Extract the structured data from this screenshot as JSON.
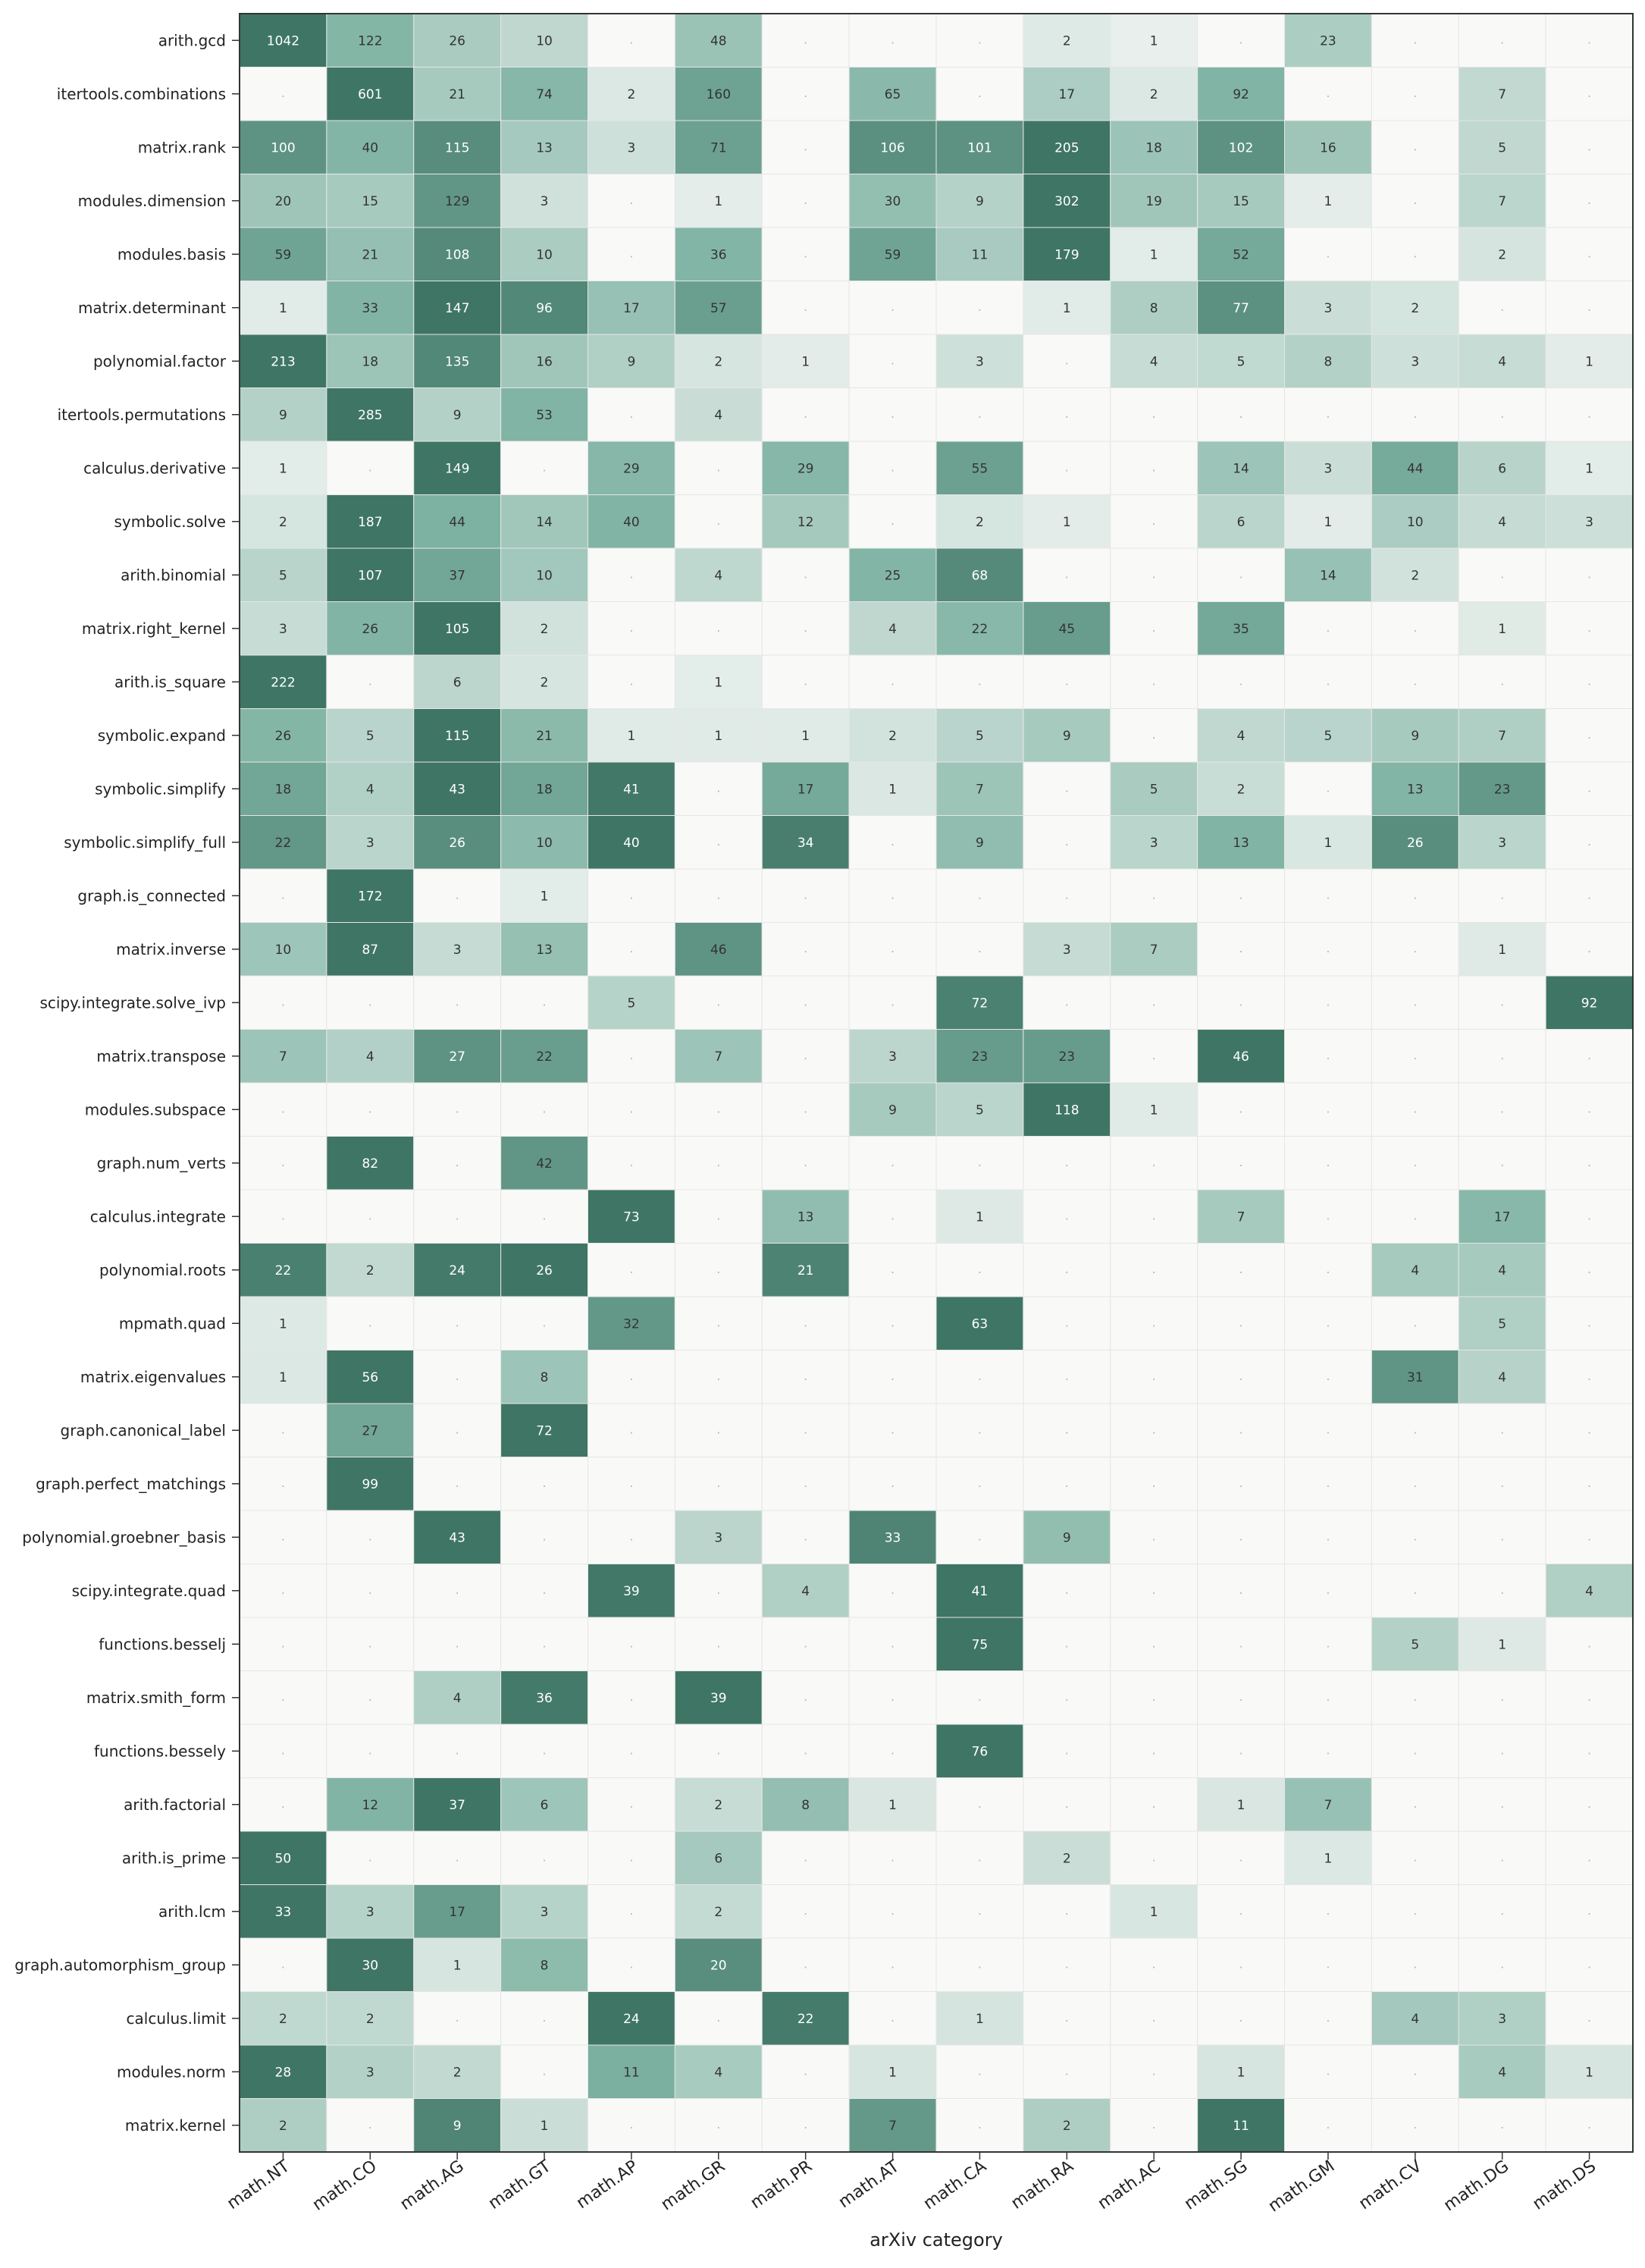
{
  "chart_data": {
    "type": "heatmap",
    "title": "",
    "xlabel": "arXiv category",
    "ylabel": "",
    "x_categories": [
      "math.NT",
      "math.CO",
      "math.AG",
      "math.GT",
      "math.AP",
      "math.GR",
      "math.PR",
      "math.AT",
      "math.CA",
      "math.RA",
      "math.AC",
      "math.SG",
      "math.GM",
      "math.CV",
      "math.DG",
      "math.DS"
    ],
    "y_categories": [
      "arith.gcd",
      "itertools.combinations",
      "matrix.rank",
      "modules.dimension",
      "modules.basis",
      "matrix.determinant",
      "polynomial.factor",
      "itertools.permutations",
      "calculus.derivative",
      "symbolic.solve",
      "arith.binomial",
      "matrix.right_kernel",
      "arith.is_square",
      "symbolic.expand",
      "symbolic.simplify",
      "symbolic.simplify_full",
      "graph.is_connected",
      "matrix.inverse",
      "scipy.integrate.solve_ivp",
      "matrix.transpose",
      "modules.subspace",
      "graph.num_verts",
      "calculus.integrate",
      "polynomial.roots",
      "mpmath.quad",
      "matrix.eigenvalues",
      "graph.canonical_label",
      "graph.perfect_matchings",
      "polynomial.groebner_basis",
      "scipy.integrate.quad",
      "functions.besselj",
      "matrix.smith_form",
      "functions.bessely",
      "arith.factorial",
      "arith.is_prime",
      "arith.lcm",
      "graph.automorphism_group",
      "calculus.limit",
      "modules.norm",
      "matrix.kernel"
    ],
    "values": [
      [
        1042,
        122,
        26,
        10,
        null,
        48,
        null,
        null,
        null,
        2,
        1,
        null,
        23,
        null,
        null,
        null
      ],
      [
        null,
        601,
        21,
        74,
        2,
        160,
        null,
        65,
        null,
        17,
        2,
        92,
        null,
        null,
        7,
        null
      ],
      [
        100,
        40,
        115,
        13,
        3,
        71,
        null,
        106,
        101,
        205,
        18,
        102,
        16,
        null,
        5,
        null
      ],
      [
        20,
        15,
        129,
        3,
        null,
        1,
        null,
        30,
        9,
        302,
        19,
        15,
        1,
        null,
        7,
        null
      ],
      [
        59,
        21,
        108,
        10,
        null,
        36,
        null,
        59,
        11,
        179,
        1,
        52,
        null,
        null,
        2,
        null
      ],
      [
        1,
        33,
        147,
        96,
        17,
        57,
        null,
        null,
        null,
        1,
        8,
        77,
        3,
        2,
        null,
        null
      ],
      [
        213,
        18,
        135,
        16,
        9,
        2,
        1,
        null,
        3,
        null,
        4,
        5,
        8,
        3,
        4,
        1
      ],
      [
        9,
        285,
        9,
        53,
        null,
        4,
        null,
        null,
        null,
        null,
        null,
        null,
        null,
        null,
        null,
        null
      ],
      [
        1,
        null,
        149,
        null,
        29,
        null,
        29,
        null,
        55,
        null,
        null,
        14,
        3,
        44,
        6,
        1
      ],
      [
        2,
        187,
        44,
        14,
        40,
        null,
        12,
        null,
        2,
        1,
        null,
        6,
        1,
        10,
        4,
        3
      ],
      [
        5,
        107,
        37,
        10,
        null,
        4,
        null,
        25,
        68,
        null,
        null,
        null,
        14,
        2,
        null,
        null
      ],
      [
        3,
        26,
        105,
        2,
        null,
        null,
        null,
        4,
        22,
        45,
        null,
        35,
        null,
        null,
        1,
        null
      ],
      [
        222,
        null,
        6,
        2,
        null,
        1,
        null,
        null,
        null,
        null,
        null,
        null,
        null,
        null,
        null,
        null
      ],
      [
        26,
        5,
        115,
        21,
        1,
        1,
        1,
        2,
        5,
        9,
        null,
        4,
        5,
        9,
        7,
        null
      ],
      [
        18,
        4,
        43,
        18,
        41,
        null,
        17,
        1,
        7,
        null,
        5,
        2,
        null,
        13,
        23,
        null
      ],
      [
        22,
        3,
        26,
        10,
        40,
        null,
        34,
        null,
        9,
        null,
        3,
        13,
        1,
        26,
        3,
        null
      ],
      [
        null,
        172,
        null,
        1,
        null,
        null,
        null,
        null,
        null,
        null,
        null,
        null,
        null,
        null,
        null,
        null
      ],
      [
        10,
        87,
        3,
        13,
        null,
        46,
        null,
        null,
        null,
        3,
        7,
        null,
        null,
        null,
        1,
        null
      ],
      [
        null,
        null,
        null,
        null,
        5,
        null,
        null,
        null,
        72,
        null,
        null,
        null,
        null,
        null,
        null,
        92
      ],
      [
        7,
        4,
        27,
        22,
        null,
        7,
        null,
        3,
        23,
        23,
        null,
        46,
        null,
        null,
        null,
        null
      ],
      [
        null,
        null,
        null,
        null,
        null,
        null,
        null,
        9,
        5,
        118,
        1,
        null,
        null,
        null,
        null,
        null
      ],
      [
        null,
        82,
        null,
        42,
        null,
        null,
        null,
        null,
        null,
        null,
        null,
        null,
        null,
        null,
        null,
        null
      ],
      [
        null,
        null,
        null,
        null,
        73,
        null,
        13,
        null,
        1,
        null,
        null,
        7,
        null,
        null,
        17,
        null
      ],
      [
        22,
        2,
        24,
        26,
        null,
        null,
        21,
        null,
        null,
        null,
        null,
        null,
        null,
        4,
        4,
        null
      ],
      [
        1,
        null,
        null,
        null,
        32,
        null,
        null,
        null,
        63,
        null,
        null,
        null,
        null,
        null,
        5,
        null
      ],
      [
        1,
        56,
        null,
        8,
        null,
        null,
        null,
        null,
        null,
        null,
        null,
        null,
        null,
        31,
        4,
        null
      ],
      [
        null,
        27,
        null,
        72,
        null,
        null,
        null,
        null,
        null,
        null,
        null,
        null,
        null,
        null,
        null,
        null
      ],
      [
        null,
        99,
        null,
        null,
        null,
        null,
        null,
        null,
        null,
        null,
        null,
        null,
        null,
        null,
        null,
        null
      ],
      [
        null,
        null,
        43,
        null,
        null,
        3,
        null,
        33,
        null,
        9,
        null,
        null,
        null,
        null,
        null,
        null
      ],
      [
        null,
        null,
        null,
        null,
        39,
        null,
        4,
        null,
        41,
        null,
        null,
        null,
        null,
        null,
        null,
        4
      ],
      [
        null,
        null,
        null,
        null,
        null,
        null,
        null,
        null,
        75,
        null,
        null,
        null,
        null,
        5,
        1,
        null
      ],
      [
        null,
        null,
        4,
        36,
        null,
        39,
        null,
        null,
        null,
        null,
        null,
        null,
        null,
        null,
        null,
        null
      ],
      [
        null,
        null,
        null,
        null,
        null,
        null,
        null,
        null,
        76,
        null,
        null,
        null,
        null,
        null,
        null,
        null
      ],
      [
        null,
        12,
        37,
        6,
        null,
        2,
        8,
        1,
        null,
        null,
        null,
        1,
        7,
        null,
        null,
        null
      ],
      [
        50,
        null,
        null,
        null,
        null,
        6,
        null,
        null,
        null,
        2,
        null,
        null,
        1,
        null,
        null,
        null
      ],
      [
        33,
        3,
        17,
        3,
        null,
        2,
        null,
        null,
        null,
        null,
        1,
        null,
        null,
        null,
        null,
        null
      ],
      [
        null,
        30,
        1,
        8,
        null,
        20,
        null,
        null,
        null,
        null,
        null,
        null,
        null,
        null,
        null,
        null
      ],
      [
        2,
        2,
        null,
        null,
        24,
        null,
        22,
        null,
        1,
        null,
        null,
        null,
        null,
        4,
        3,
        null
      ],
      [
        28,
        3,
        2,
        null,
        11,
        4,
        null,
        1,
        null,
        null,
        null,
        1,
        null,
        null,
        4,
        1
      ],
      [
        2,
        null,
        9,
        1,
        null,
        null,
        null,
        7,
        null,
        2,
        null,
        11,
        null,
        null,
        null,
        null
      ]
    ],
    "empty_label": ".",
    "colors": {
      "low": "#f9f9f8",
      "high": "#3f7565",
      "mid": "#7fb3a3",
      "text_dark": "#333333",
      "text_light": "#ffffff",
      "grid": "#e6e6e6",
      "frame": "#333333"
    },
    "legend": "none",
    "grid": true
  }
}
